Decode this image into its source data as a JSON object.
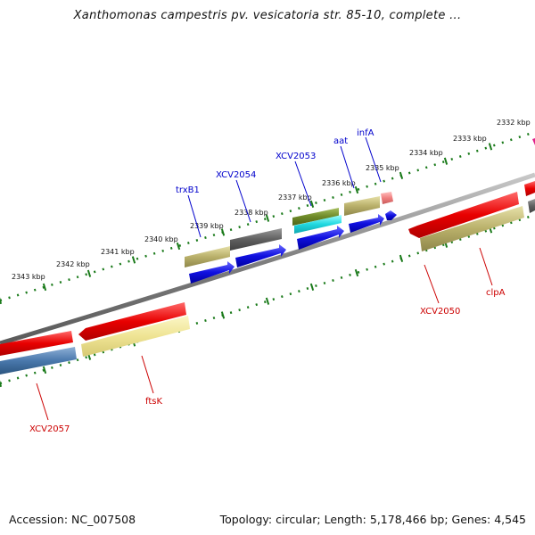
{
  "title": "Xanthomonas campestris pv. vesicatoria str. 85-10, complete ...",
  "footer": {
    "accession": "Accession: NC_007508",
    "stats": "Topology: circular; Length: 5,178,466 bp; Genes: 4,545"
  },
  "colors": {
    "forward_label": "#0000cc",
    "reverse_label": "#cc0000",
    "tick": "#1a7a1a",
    "backbone": "#808080"
  },
  "ruler": {
    "unit": "kbp",
    "ticks": [
      "2332 kbp",
      "2333 kbp",
      "2334 kbp",
      "2335 kbp",
      "2336 kbp",
      "2337 kbp",
      "2338 kbp",
      "2339 kbp",
      "2340 kbp",
      "2341 kbp",
      "2342 kbp",
      "2343 kbp"
    ]
  },
  "genes": {
    "forward": [
      {
        "name": "infA"
      },
      {
        "name": "aat"
      },
      {
        "name": "XCV2053"
      },
      {
        "name": "XCV2054"
      },
      {
        "name": "trxB1"
      }
    ],
    "reverse": [
      {
        "name": "clpA"
      },
      {
        "name": "XCV2050"
      },
      {
        "name": "ftsK"
      },
      {
        "name": "XCV2057"
      }
    ]
  }
}
